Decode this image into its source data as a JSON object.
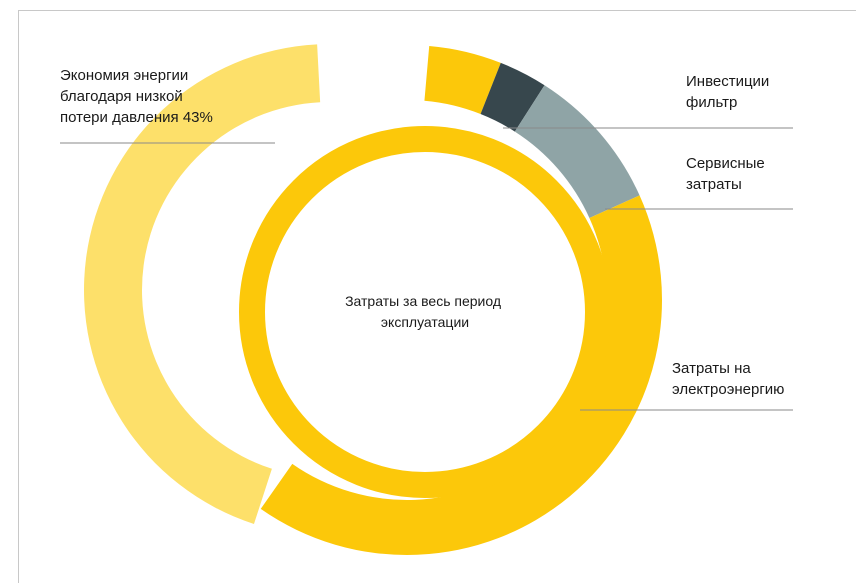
{
  "chart_data": {
    "type": "pie",
    "variant": "donut",
    "center_label": [
      "Затраты за весь период",
      "эксплуатации"
    ],
    "slices": [
      {
        "label": "Экономия энергии благодаря низкой потери давления 43%",
        "value": 43,
        "ring": "outer",
        "color": "#fde06a"
      },
      {
        "label": "",
        "value": 4.5,
        "ring": "outer",
        "color": "#fcc80a"
      },
      {
        "label": "Инвестиции фильтр",
        "value": 3,
        "ring": "outer",
        "color": "#37474d"
      },
      {
        "label": "Сервисные затраты",
        "value": 9,
        "ring": "outer",
        "color": "#8fa4a6"
      },
      {
        "label": "Затраты на электроэнергию",
        "value": 40.5,
        "ring": "outer",
        "color": "#fcc80a"
      },
      {
        "label": "",
        "value": 100,
        "ring": "inner",
        "color": "#fcc80a"
      }
    ],
    "labels": {
      "savings": [
        "Экономия энергии",
        "благодаря низкой",
        "потери давления 43%"
      ],
      "investment": [
        "Инвестиции",
        "фильтр"
      ],
      "service": [
        "Сервисные",
        "затраты"
      ],
      "electricity": [
        "Затраты на",
        "электроэнергию"
      ]
    },
    "colors": {
      "savings": "#fde06a",
      "main": "#fcc80a",
      "investment": "#37474d",
      "service": "#8fa4a6",
      "leader": "#8a8a8a"
    }
  }
}
